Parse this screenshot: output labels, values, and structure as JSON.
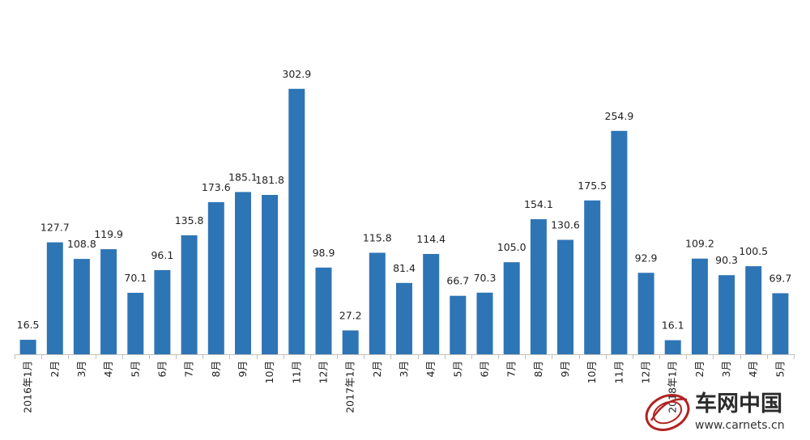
{
  "chart_data": {
    "type": "bar",
    "title": "",
    "xlabel": "",
    "ylabel": "",
    "ylim": [
      0,
      310
    ],
    "grid": false,
    "legend": "none",
    "bar_color": "#2e75b6",
    "categories": [
      "2016年1月",
      "2月",
      "3月",
      "4月",
      "5月",
      "6月",
      "7月",
      "8月",
      "9月",
      "10月",
      "11月",
      "12月",
      "2017年1月",
      "2月",
      "3月",
      "4月",
      "5月",
      "6月",
      "7月",
      "8月",
      "9月",
      "10月",
      "11月",
      "12月",
      "2018年1月",
      "2月",
      "3月",
      "4月",
      "5月"
    ],
    "values": [
      16.5,
      127.7,
      108.8,
      119.9,
      70.1,
      96.1,
      135.8,
      173.6,
      185.1,
      181.8,
      302.9,
      98.9,
      27.2,
      115.8,
      81.4,
      114.4,
      66.7,
      70.3,
      105.0,
      154.1,
      130.6,
      175.5,
      254.9,
      92.9,
      16.1,
      109.2,
      90.3,
      100.5,
      69.7
    ],
    "value_labels": [
      "16.5",
      "127.7",
      "108.8",
      "119.9",
      "70.1",
      "96.1",
      "135.8",
      "173.6",
      "185.1",
      "181.8",
      "302.9",
      "98.9",
      "27.2",
      "115.8",
      "81.4",
      "114.4",
      "66.7",
      "70.3",
      "105.0",
      "154.1",
      "130.6",
      "175.5",
      "254.9",
      "92.9",
      "16.1",
      "109.2",
      "90.3",
      "100.5",
      "69.7"
    ]
  },
  "watermark": {
    "brand_cn": "车网中国",
    "url": "www.carnets.cn"
  }
}
